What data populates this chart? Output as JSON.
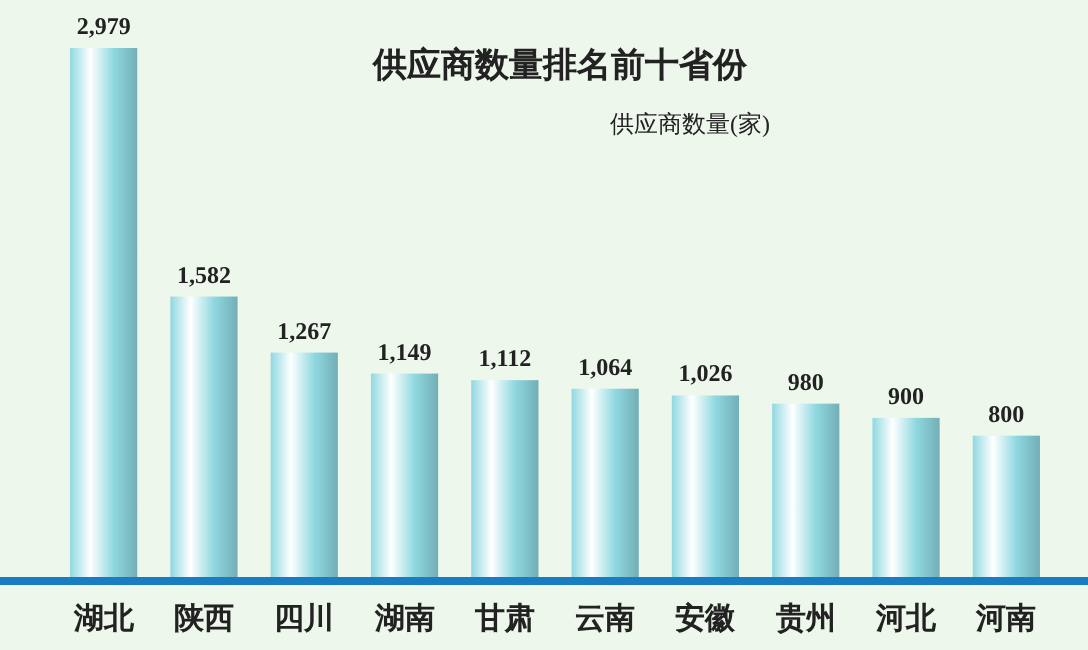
{
  "chart_data": {
    "type": "bar",
    "title": "供应商数量排名前十省份",
    "ylabel": "供应商数量(家)",
    "categories": [
      "湖北",
      "陕西",
      "四川",
      "湖南",
      "甘肃",
      "云南",
      "安徽",
      "贵州",
      "河北",
      "河南"
    ],
    "values": [
      2979,
      1582,
      1267,
      1149,
      1112,
      1064,
      1026,
      980,
      900,
      800
    ],
    "value_labels": [
      "2,979",
      "1,582",
      "1,267",
      "1,149",
      "1,112",
      "1,064",
      "1,026",
      "980",
      "900",
      "800"
    ],
    "color": "#8fd8e0"
  }
}
